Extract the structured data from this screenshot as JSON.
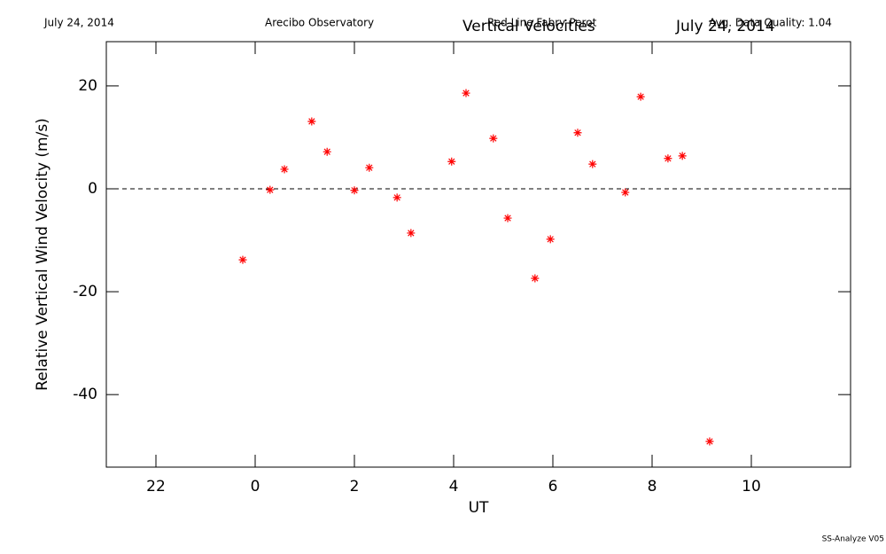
{
  "chart_data": {
    "type": "scatter",
    "header": [
      "July 24, 2014",
      "Arecibo Observatory",
      "Red Line Fabry-Perot",
      "July 24, 2014",
      "Avg. Data Quality: 1.04"
    ],
    "title": "Vertical Velocities",
    "x_label": "UT",
    "y_label": "Relative Vertical Wind Velocity (m/s)",
    "footer": "SS-Analyze V05",
    "color": "#ff0000",
    "reference_line": 0,
    "x": [
      -0.25,
      0.3,
      0.59,
      1.14,
      1.45,
      2.0,
      2.3,
      2.86,
      3.14,
      3.96,
      4.25,
      4.8,
      5.09,
      5.64,
      5.95,
      6.5,
      6.8,
      7.46,
      7.77,
      8.32,
      8.61,
      9.16
    ],
    "values": [
      -13.8,
      -0.2,
      3.8,
      13.1,
      7.2,
      -0.3,
      4.1,
      -1.7,
      -8.6,
      5.3,
      18.6,
      9.8,
      -5.7,
      -17.4,
      -9.8,
      10.9,
      4.8,
      -0.7,
      17.9,
      5.9,
      6.4,
      -49.1
    ],
    "xlim": [
      -3,
      12
    ],
    "xticks": [
      {
        "value": -2,
        "label": "22"
      },
      0,
      2,
      4,
      6,
      8,
      10
    ],
    "ylim": [
      -54.1,
      28.6
    ],
    "yticks": [
      -40,
      -20,
      0,
      20
    ]
  }
}
